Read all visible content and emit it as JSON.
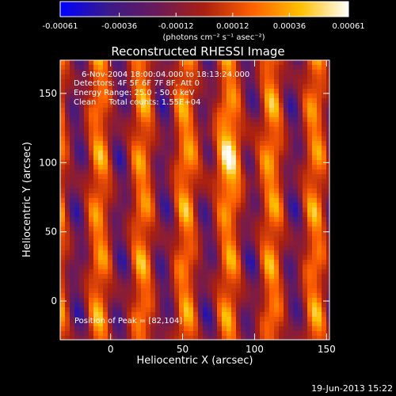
{
  "chart_data": {
    "type": "heatmap",
    "title": "Reconstructed RHESSI Image",
    "xlabel": "Heliocentric X (arcsec)",
    "ylabel": "Heliocentric Y (arcsec)",
    "xlim": [
      -35,
      152
    ],
    "ylim": [
      -28,
      174
    ],
    "x_ticks": [
      0,
      50,
      100,
      150
    ],
    "y_ticks": [
      0,
      50,
      100,
      150
    ],
    "colorbar": {
      "ticks": [
        "-0.00061",
        "-0.00036",
        "-0.00012",
        "0.00012",
        "0.00036",
        "0.00061"
      ],
      "tick_values": [
        -0.00061,
        -0.00036,
        -0.00012,
        0.00012,
        0.00036,
        0.00061
      ],
      "range": [
        -0.00061,
        0.00061
      ],
      "units": "(photons cm⁻² s⁻¹ asec⁻²)",
      "colormap": [
        "#0000ff",
        "#3a1a8a",
        "#6a1a5a",
        "#aa2010",
        "#ff6000",
        "#ffc000",
        "#ffffff"
      ]
    },
    "annotations": [
      "6-Nov-2004 18:00:04.000 to 18:13:24.000",
      "Detectors: 4F 5F 6F 7F 8F, Att 0",
      "Energy Range: 25.0 - 50.0 keV",
      "Clean     Total counts: 1.55E+04"
    ],
    "peak_label": "Position of Peak = [82,104]",
    "peak": [
      82,
      104
    ],
    "footer_date": "19-Jun-2013 15:22"
  }
}
